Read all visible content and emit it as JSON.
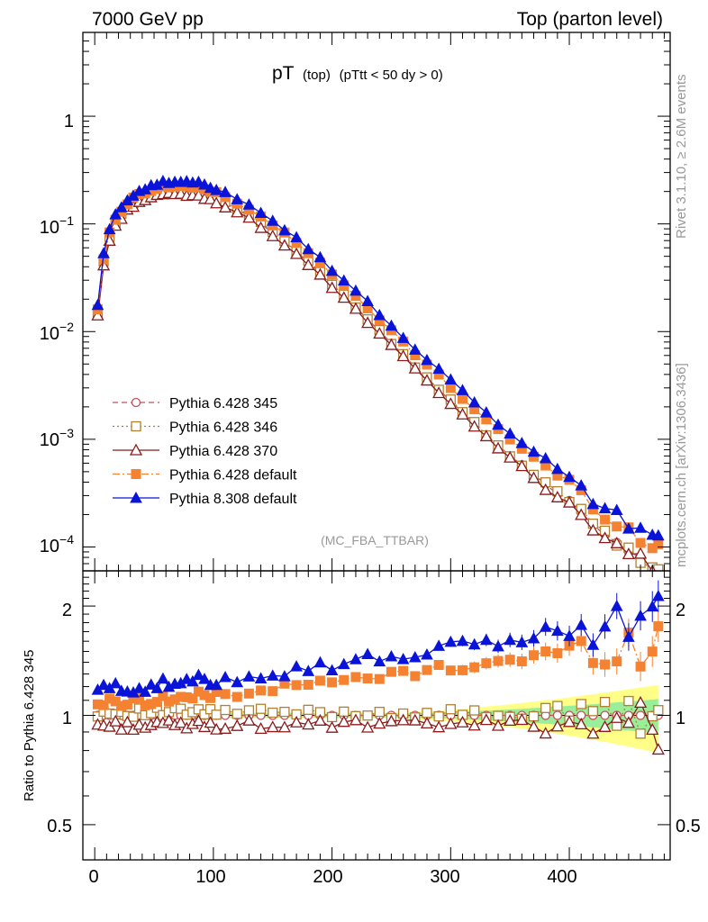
{
  "header": {
    "left": "7000 GeV pp",
    "right": "Top (parton level)"
  },
  "side_labels": {
    "rivet": "Rivet 3.1.10, ≥ 2.6M events",
    "mcplots": "mcplots.cern.ch [arXiv:1306.3436]"
  },
  "plot_title": {
    "main": "pT",
    "sub1": "(top)",
    "sub2": "(pTtt < 50 dy > 0)"
  },
  "analysis_label": "(MC_FBA_TTBAR)",
  "ratio_ylabel": "Ratio to Pythia 6.428 345",
  "top_ticks": [
    "10−4",
    "10−3",
    "10−2",
    "10−1",
    "1"
  ],
  "ratio_ticks": [
    "0.5",
    "1",
    "2"
  ],
  "x_ticks": [
    "0",
    "100",
    "200",
    "300",
    "400"
  ],
  "chart_data": {
    "type": "line",
    "x_range": [
      -10,
      485
    ],
    "main_yscale": "log",
    "main_ylim": [
      6e-05,
      6
    ],
    "ratio_yscale": "log",
    "ratio_ylim": [
      0.4,
      2.5
    ],
    "legend_placement": "lower-left",
    "series": [
      {
        "name": "Pythia 6.428 345",
        "color": "#c0505a",
        "marker": "open-circle",
        "line": "dashed",
        "scale": 1.0,
        "amp": 0.0,
        "seed": 1,
        "ratio_start": 1.0,
        "ratio_end": 1.0
      },
      {
        "name": "Pythia 6.428 346",
        "color": "#b08030",
        "marker": "open-square",
        "line": "dotted",
        "scale": 1.02,
        "amp": 0.03,
        "seed": 2,
        "ratio_start": 1.02,
        "ratio_end": 1.0
      },
      {
        "name": "Pythia 6.428 370",
        "color": "#8b1a1a",
        "marker": "open-triangle",
        "line": "solid",
        "scale": 0.94,
        "amp": 0.03,
        "seed": 3,
        "ratio_start": 0.94,
        "ratio_end": 0.95
      },
      {
        "name": "Pythia 6.428 default",
        "color": "#f58231",
        "marker": "filled-square",
        "line": "dashdot",
        "scale": 1.08,
        "amp": 0.03,
        "seed": 4,
        "ratio_start": 1.08,
        "ratio_end": 1.6
      },
      {
        "name": "Pythia 8.308 default",
        "color": "#0a14d8",
        "marker": "filled-triangle",
        "line": "solid",
        "scale": 1.18,
        "amp": 0.04,
        "seed": 5,
        "ratio_start": 1.18,
        "ratio_end": 1.85
      }
    ],
    "reference_shape": [
      [
        2.5,
        0.015
      ],
      [
        7.5,
        0.044
      ],
      [
        12.5,
        0.075
      ],
      [
        17.5,
        0.1
      ],
      [
        22.5,
        0.122
      ],
      [
        27.5,
        0.142
      ],
      [
        32.5,
        0.158
      ],
      [
        37.5,
        0.17
      ],
      [
        42.5,
        0.18
      ],
      [
        47.5,
        0.188
      ],
      [
        52.5,
        0.194
      ],
      [
        57.5,
        0.198
      ],
      [
        62.5,
        0.2
      ],
      [
        67.5,
        0.201
      ],
      [
        72.5,
        0.2
      ],
      [
        77.5,
        0.198
      ],
      [
        82.5,
        0.195
      ],
      [
        87.5,
        0.19
      ],
      [
        92.5,
        0.184
      ],
      [
        97.5,
        0.178
      ],
      [
        102.5,
        0.17
      ],
      [
        110,
        0.155
      ],
      [
        120,
        0.137
      ],
      [
        130,
        0.118
      ],
      [
        140,
        0.1
      ],
      [
        150,
        0.083
      ],
      [
        160,
        0.068
      ],
      [
        170,
        0.055
      ],
      [
        180,
        0.044
      ],
      [
        190,
        0.035
      ],
      [
        200,
        0.0275
      ],
      [
        210,
        0.0215
      ],
      [
        220,
        0.0168
      ],
      [
        230,
        0.013
      ],
      [
        240,
        0.0101
      ],
      [
        250,
        0.0078
      ],
      [
        260,
        0.0061
      ],
      [
        270,
        0.0047
      ],
      [
        280,
        0.0037
      ],
      [
        290,
        0.0029
      ],
      [
        300,
        0.00225
      ],
      [
        310,
        0.00178
      ],
      [
        320,
        0.0014
      ],
      [
        330,
        0.0011
      ],
      [
        340,
        0.00088
      ],
      [
        350,
        0.0007
      ],
      [
        360,
        0.00058
      ],
      [
        370,
        0.00047
      ],
      [
        380,
        0.00038
      ],
      [
        390,
        0.00031
      ],
      [
        400,
        0.00027
      ],
      [
        410,
        0.00021
      ],
      [
        420,
        0.00016
      ],
      [
        430,
        0.00013
      ],
      [
        440,
        0.00011
      ],
      [
        450,
        9e-05
      ],
      [
        460,
        8e-05
      ],
      [
        470,
        6.5e-05
      ],
      [
        475,
        6e-05
      ]
    ],
    "reference_ratio": 1.0,
    "band_inner_color": "#99ee99",
    "band_outer_color": "#ffff88"
  }
}
